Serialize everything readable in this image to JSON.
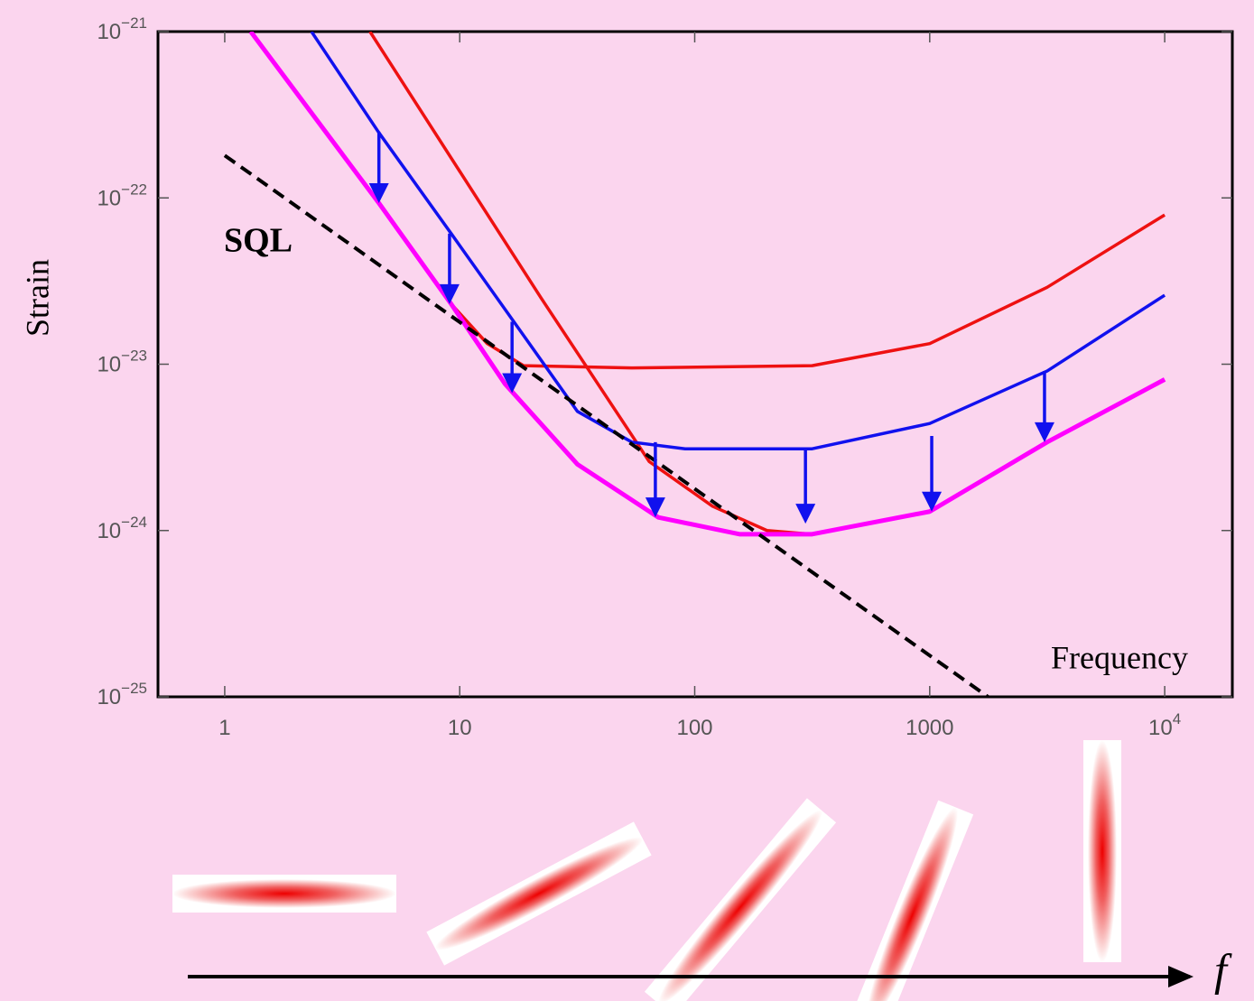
{
  "chart_data": {
    "type": "line",
    "xlabel": "Frequency",
    "ylabel": "Strain",
    "log_x": true,
    "log_y": true,
    "xlim": [
      0.52,
      19400
    ],
    "ylim": [
      1e-25,
      1e-21
    ],
    "xticks": [
      1,
      10,
      100,
      1000,
      {
        "value": 10000,
        "label": "10",
        "exponent": "4"
      }
    ],
    "yticks": [
      {
        "value": 1e-25,
        "label": "10",
        "exponent": "−25"
      },
      {
        "value": 1e-24,
        "label": "10",
        "exponent": "−24"
      },
      {
        "value": 1e-23,
        "label": "10",
        "exponent": "−23"
      },
      {
        "value": 1e-22,
        "label": "10",
        "exponent": "−22"
      },
      {
        "value": 1e-21,
        "label": "10",
        "exponent": "−21"
      }
    ],
    "series": [
      {
        "color": "#ee1111",
        "width": 3.5,
        "x": [
          1.29,
          4.53,
          9.2,
          13.1,
          18.7,
          54,
          316,
          1000,
          3160,
          10000
        ],
        "values": [
          1e-21,
          9.3e-23,
          2.3e-23,
          1.33e-23,
          9.8e-24,
          9.5e-24,
          9.8e-24,
          1.33e-23,
          2.9e-23,
          7.9e-23
        ]
      },
      {
        "color": "#ee1111",
        "width": 3.5,
        "x": [
          4.15,
          22.2,
          64,
          119,
          203,
          316,
          1000
        ],
        "values": [
          1e-21,
          2.5e-23,
          2.6e-24,
          1.4e-24,
          1e-24,
          9.5e-25,
          1.3e-24
        ]
      },
      {
        "color": "#1111ee",
        "width": 3.5,
        "x": [
          2.34,
          4.5,
          9.2,
          17,
          31.7,
          54,
          91,
          316,
          1000,
          3160,
          10000
        ],
        "values": [
          1e-21,
          2.5e-22,
          6.1e-23,
          1.8e-23,
          5.2e-24,
          3.4e-24,
          3.1e-24,
          3.1e-24,
          4.4e-24,
          9.1e-24,
          2.6e-23
        ]
      },
      {
        "color": "#ff00ff",
        "width": 5,
        "x": [
          1.29,
          4.53,
          9.2,
          15.6,
          31.7,
          70,
          155,
          316,
          1000,
          3160,
          10000
        ],
        "values": [
          1e-21,
          9.3e-23,
          2.3e-23,
          7.6e-24,
          2.5e-24,
          1.2e-24,
          9.5e-25,
          9.5e-25,
          1.3e-24,
          3.4e-24,
          8.1e-24
        ]
      },
      {
        "color": "#000000",
        "width": 4,
        "dashed": true,
        "x": [
          1,
          1770
        ],
        "values": [
          1.8e-22,
          1e-25
        ]
      }
    ],
    "sql_label": "SQL",
    "arrow_color": "#1111ee",
    "arrows": [
      {
        "x": 4.53,
        "from": 2.5e-22,
        "to": 9.3e-23
      },
      {
        "x": 9.05,
        "from": 6.1e-23,
        "to": 2.3e-23
      },
      {
        "x": 16.7,
        "from": 1.8e-23,
        "to": 6.7e-24
      },
      {
        "x": 68,
        "from": 3.4e-24,
        "to": 1.2e-24
      },
      {
        "x": 296,
        "from": 3.1e-24,
        "to": 1.1e-24
      },
      {
        "x": 1020,
        "from": 3.7e-24,
        "to": 1.3e-24
      },
      {
        "x": 3080,
        "from": 9.1e-24,
        "to": 3.4e-24
      }
    ],
    "f_label": "f"
  }
}
